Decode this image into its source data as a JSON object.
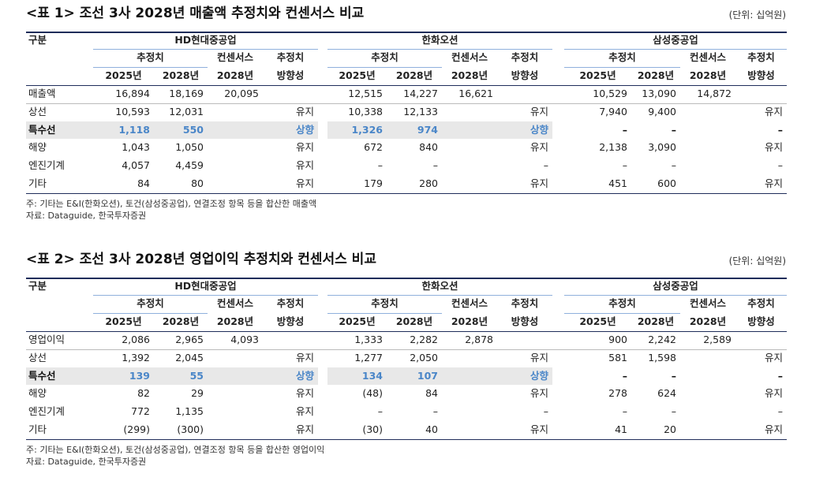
{
  "tables": [
    {
      "title": "<표 1> 조선 3사 2028년 매출액 추정치와 컨센서스 비교",
      "unit": "(단위: 십억원)",
      "corner": "구분",
      "groups": [
        {
          "name": "HD현대중공업",
          "sub": [
            "추정치",
            "컨센서스",
            "추정치"
          ],
          "sub2": [
            "2025년",
            "2028년",
            "2028년",
            "방향성"
          ]
        },
        {
          "name": "한화오션",
          "sub": [
            "추정치",
            "컨센서스",
            "추정치"
          ],
          "sub2": [
            "2025년",
            "2028년",
            "2028년",
            "방향성"
          ]
        },
        {
          "name": "삼성중공업",
          "sub": [
            "추정치",
            "컨센서스",
            "추정치"
          ],
          "sub2": [
            "2025년",
            "2028년",
            "2028년",
            "방향성"
          ]
        }
      ],
      "rows": [
        {
          "label": "매출액",
          "cells": [
            "16,894",
            "18,169",
            "20,095",
            null,
            "12,515",
            "14,227",
            "16,621",
            null,
            "10,529",
            "13,090",
            "14,872",
            null
          ]
        },
        {
          "label": "상선",
          "cells": [
            "10,593",
            "12,031",
            null,
            "유지",
            "10,338",
            "12,133",
            null,
            "유지",
            "7,940",
            "9,400",
            null,
            "유지"
          ]
        },
        {
          "label": "특수선",
          "cells": [
            "1,118",
            "550",
            null,
            "상향",
            "1,326",
            "974",
            null,
            "상향",
            "–",
            "–",
            null,
            "–"
          ]
        },
        {
          "label": "해양",
          "cells": [
            "1,043",
            "1,050",
            null,
            "유지",
            "672",
            "840",
            null,
            "유지",
            "2,138",
            "3,090",
            null,
            "유지"
          ]
        },
        {
          "label": "엔진기계",
          "cells": [
            "4,057",
            "4,459",
            null,
            "유지",
            "–",
            "–",
            null,
            "–",
            "–",
            "–",
            null,
            "–"
          ]
        },
        {
          "label": "기타",
          "cells": [
            "84",
            "80",
            null,
            "유지",
            "179",
            "280",
            null,
            "유지",
            "451",
            "600",
            null,
            "유지"
          ]
        }
      ],
      "notes": [
        "주: 기타는 E&I(한화오션), 토건(삼성중공업), 연결조정 항목 등을 합산한 매출액",
        "자료: Dataguide, 한국투자증권"
      ]
    },
    {
      "title": "<표 2> 조선 3사 2028년 영업이익 추정치와 컨센서스 비교",
      "unit": "(단위: 십억원)",
      "corner": "구분",
      "groups": [
        {
          "name": "HD현대중공업",
          "sub": [
            "추정치",
            "컨센서스",
            "추정치"
          ],
          "sub2": [
            "2025년",
            "2028년",
            "2028년",
            "방향성"
          ]
        },
        {
          "name": "한화오션",
          "sub": [
            "추정치",
            "컨센서스",
            "추정치"
          ],
          "sub2": [
            "2025년",
            "2028년",
            "2028년",
            "방향성"
          ]
        },
        {
          "name": "삼성중공업",
          "sub": [
            "추정치",
            "컨센서스",
            "추정치"
          ],
          "sub2": [
            "2025년",
            "2028년",
            "2028년",
            "방향성"
          ]
        }
      ],
      "rows": [
        {
          "label": "영업이익",
          "cells": [
            "2,086",
            "2,965",
            "4,093",
            null,
            "1,333",
            "2,282",
            "2,878",
            null,
            "900",
            "2,242",
            "2,589",
            null
          ]
        },
        {
          "label": "상선",
          "cells": [
            "1,392",
            "2,045",
            null,
            "유지",
            "1,277",
            "2,050",
            null,
            "유지",
            "581",
            "1,598",
            null,
            "유지"
          ]
        },
        {
          "label": "특수선",
          "cells": [
            "139",
            "55",
            null,
            "상향",
            "134",
            "107",
            null,
            "상향",
            "–",
            "–",
            null,
            "–"
          ]
        },
        {
          "label": "해양",
          "cells": [
            "82",
            "29",
            null,
            "유지",
            "(48)",
            "84",
            null,
            "유지",
            "278",
            "624",
            null,
            "유지"
          ]
        },
        {
          "label": "엔진기계",
          "cells": [
            "772",
            "1,135",
            null,
            "유지",
            "–",
            "–",
            null,
            "–",
            "–",
            "–",
            null,
            "–"
          ]
        },
        {
          "label": "기타",
          "cells": [
            "(299)",
            "(300)",
            null,
            "유지",
            "(30)",
            "40",
            null,
            "유지",
            "41",
            "20",
            null,
            "유지"
          ]
        }
      ],
      "notes": [
        "주: 기타는 E&I(한화오션), 토건(삼성중공업), 연결조정 항목 등을 합산한 영업이익",
        "자료: Dataguide, 한국투자증권"
      ]
    }
  ]
}
